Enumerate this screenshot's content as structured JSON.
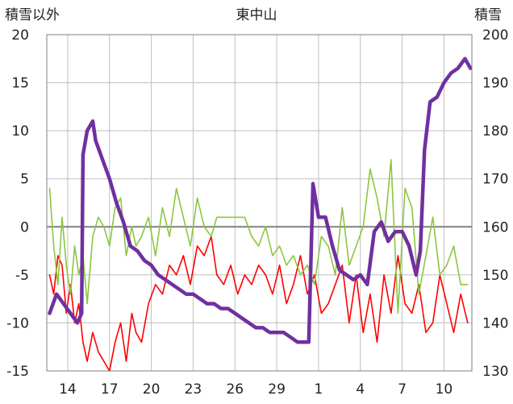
{
  "chart_data": {
    "type": "line",
    "title": "東中山",
    "ylabel_left": "積雪以外",
    "ylabel_right": "積雪",
    "x_tick_labels": [
      "14",
      "17",
      "20",
      "23",
      "26",
      "29",
      "1",
      "4",
      "7",
      "10"
    ],
    "left_axis": {
      "ticks": [
        20,
        15,
        10,
        5,
        0,
        -5,
        -10,
        -15
      ],
      "ylim": [
        -15,
        20
      ]
    },
    "right_axis": {
      "ticks": [
        200,
        190,
        180,
        170,
        160,
        150,
        140,
        130
      ],
      "ylim": [
        130,
        200
      ]
    },
    "grid": true,
    "x_range": [
      12.5,
      43.0
    ],
    "series": [
      {
        "name": "",
        "axis": "left",
        "color": "#ff0000",
        "x": [
          12.7,
          13.0,
          13.3,
          13.6,
          13.9,
          14.2,
          14.5,
          14.8,
          15.1,
          15.4,
          15.8,
          16.2,
          16.6,
          17.0,
          17.4,
          17.8,
          18.2,
          18.6,
          18.9,
          19.3,
          19.8,
          20.3,
          20.8,
          21.3,
          21.8,
          22.3,
          22.8,
          23.3,
          23.8,
          24.3,
          24.7,
          25.2,
          25.7,
          26.2,
          26.7,
          27.2,
          27.7,
          28.2,
          28.7,
          29.2,
          29.7,
          30.2,
          30.7,
          31.2,
          31.7,
          32.2,
          32.7,
          33.2,
          33.7,
          34.2,
          34.7,
          35.2,
          35.7,
          36.2,
          36.7,
          37.2,
          37.7,
          38.2,
          38.7,
          39.2,
          39.7,
          40.2,
          40.7,
          41.2,
          41.7,
          42.2,
          42.7
        ],
        "y": [
          -5,
          -7,
          -3,
          -4,
          -9,
          -6,
          -10,
          -8,
          -12,
          -14,
          -11,
          -13,
          -14,
          -15,
          -12,
          -10,
          -14,
          -9,
          -11,
          -12,
          -8,
          -6,
          -7,
          -4,
          -5,
          -3,
          -6,
          -2,
          -3,
          -1,
          -5,
          -6,
          -4,
          -7,
          -5,
          -6,
          -4,
          -5,
          -7,
          -4,
          -8,
          -6,
          -3,
          -7,
          -5,
          -9,
          -8,
          -6,
          -4,
          -10,
          -5,
          -11,
          -7,
          -12,
          -5,
          -9,
          -3,
          -8,
          -9,
          -6,
          -11,
          -10,
          -5,
          -8,
          -11,
          -7,
          -10
        ]
      },
      {
        "name": "",
        "axis": "left",
        "color": "#8cc63f",
        "x": [
          12.7,
          13.0,
          13.3,
          13.6,
          13.9,
          14.2,
          14.5,
          14.8,
          15.1,
          15.4,
          15.8,
          16.2,
          16.6,
          17.0,
          17.4,
          17.8,
          18.2,
          18.6,
          18.9,
          19.3,
          19.8,
          20.3,
          20.8,
          21.3,
          21.8,
          22.3,
          22.8,
          23.3,
          23.8,
          24.3,
          24.7,
          26.7,
          27.2,
          27.7,
          28.2,
          28.7,
          29.2,
          29.7,
          30.2,
          30.7,
          31.2,
          31.7,
          32.2,
          32.7,
          33.2,
          33.7,
          34.2,
          34.7,
          35.2,
          35.7,
          36.2,
          36.7,
          37.2,
          37.7,
          38.2,
          38.7,
          39.2,
          39.7,
          40.2,
          40.7,
          41.2,
          41.7,
          42.2,
          42.7
        ],
        "y": [
          4,
          -2,
          -6,
          1,
          -4,
          -7,
          -2,
          -5,
          -3,
          -8,
          -1,
          1,
          0,
          -2,
          2,
          3,
          -3,
          0,
          -2,
          -1,
          1,
          -3,
          2,
          -1,
          4,
          1,
          -2,
          3,
          0,
          -1,
          1,
          1,
          -1,
          -2,
          0,
          -3,
          -2,
          -4,
          -3,
          -5,
          -4,
          -6,
          -1,
          -2,
          -5,
          2,
          -4,
          -2,
          0,
          6,
          3,
          -1,
          7,
          -9,
          4,
          2,
          -7,
          -3,
          1,
          -5,
          -4,
          -2,
          -6,
          -6
        ]
      },
      {
        "name": "",
        "axis": "right",
        "color": "#7030a0",
        "x": [
          12.7,
          13.2,
          13.7,
          14.2,
          14.7,
          15.0,
          15.1,
          15.4,
          15.8,
          16.0,
          16.5,
          17.0,
          17.5,
          18.0,
          18.5,
          19.0,
          19.5,
          20.0,
          20.5,
          21.0,
          21.5,
          22.0,
          22.5,
          23.0,
          23.5,
          24.0,
          24.5,
          25.0,
          25.5,
          26.0,
          26.5,
          27.0,
          27.5,
          28.0,
          28.5,
          29.0,
          29.5,
          30.0,
          30.5,
          31.0,
          31.3,
          31.6,
          32.0,
          32.5,
          33.0,
          33.5,
          34.0,
          34.5,
          35.0,
          35.5,
          36.0,
          36.5,
          37.0,
          37.5,
          38.0,
          38.5,
          39.0,
          39.3,
          39.6,
          40.0,
          40.5,
          41.0,
          41.5,
          42.0,
          42.5,
          42.9
        ],
        "y": [
          142,
          146,
          144,
          142,
          140,
          142,
          175,
          180,
          182,
          178,
          174,
          170,
          165,
          161,
          156,
          155,
          153,
          152,
          150,
          149,
          148,
          147,
          146,
          146,
          145,
          144,
          144,
          143,
          143,
          142,
          141,
          140,
          139,
          139,
          138,
          138,
          138,
          137,
          136,
          136,
          136,
          169,
          162,
          162,
          156,
          151,
          150,
          149,
          150,
          148,
          159,
          161,
          157,
          159,
          159,
          156,
          150,
          155,
          176,
          186,
          187,
          190,
          192,
          193,
          195,
          193
        ]
      }
    ]
  }
}
